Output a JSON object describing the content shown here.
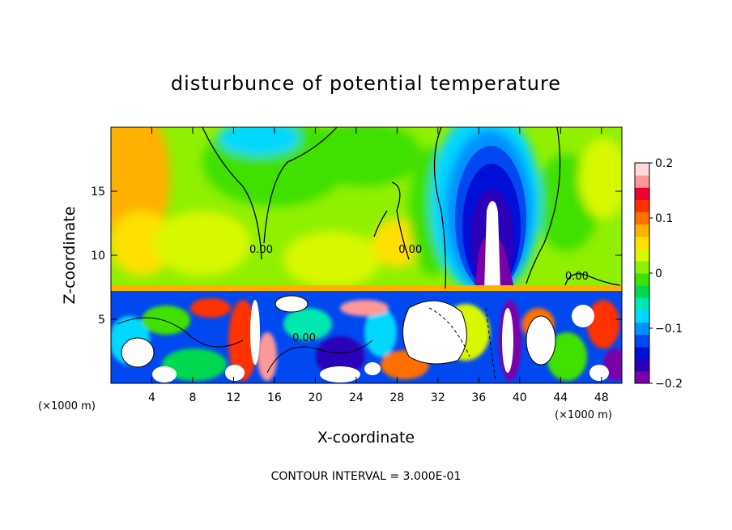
{
  "chart_data": {
    "type": "heatmap",
    "title": "disturbunce of potential temperature",
    "xlabel": "X-coordinate",
    "ylabel": "Z-coordinate",
    "x_unit": "(×1000 m)",
    "y_unit": "(×1000 m)",
    "xlim": [
      0,
      50
    ],
    "ylim": [
      0,
      20
    ],
    "x_ticks": [
      4,
      8,
      12,
      16,
      20,
      24,
      28,
      32,
      36,
      40,
      44,
      48
    ],
    "y_ticks": [
      5,
      10,
      15
    ],
    "colorbar": {
      "range": [
        -0.2,
        0.2
      ],
      "ticks": [
        {
          "value": 0.2,
          "label": "0.2"
        },
        {
          "value": 0.1,
          "label": "0.1"
        },
        {
          "value": 0,
          "label": "0"
        },
        {
          "value": -0.1,
          "label": "−0.1"
        },
        {
          "value": -0.2,
          "label": "−0.2"
        }
      ],
      "colors": [
        "#7a00a8",
        "#2a00b8",
        "#0010d8",
        "#0048f0",
        "#0090ff",
        "#00d8ff",
        "#00e8b0",
        "#00d850",
        "#40e000",
        "#90f000",
        "#d8f800",
        "#ffe000",
        "#ffb000",
        "#ff7000",
        "#ff3000",
        "#f00030",
        "#ff9898",
        "#ffd8d8"
      ]
    },
    "contour_labels": [
      {
        "x": 14.7,
        "z": 10.2,
        "text": "0.00"
      },
      {
        "x": 29.3,
        "z": 10.2,
        "text": "0.00"
      },
      {
        "x": 18.9,
        "z": 3.3,
        "text": "0.00"
      },
      {
        "x": 45.6,
        "z": 8.1,
        "text": "0.00"
      }
    ],
    "contour_interval": "CONTOUR INTERVAL = 3.000E-01",
    "grid": false,
    "legend": "colorbar-right"
  }
}
